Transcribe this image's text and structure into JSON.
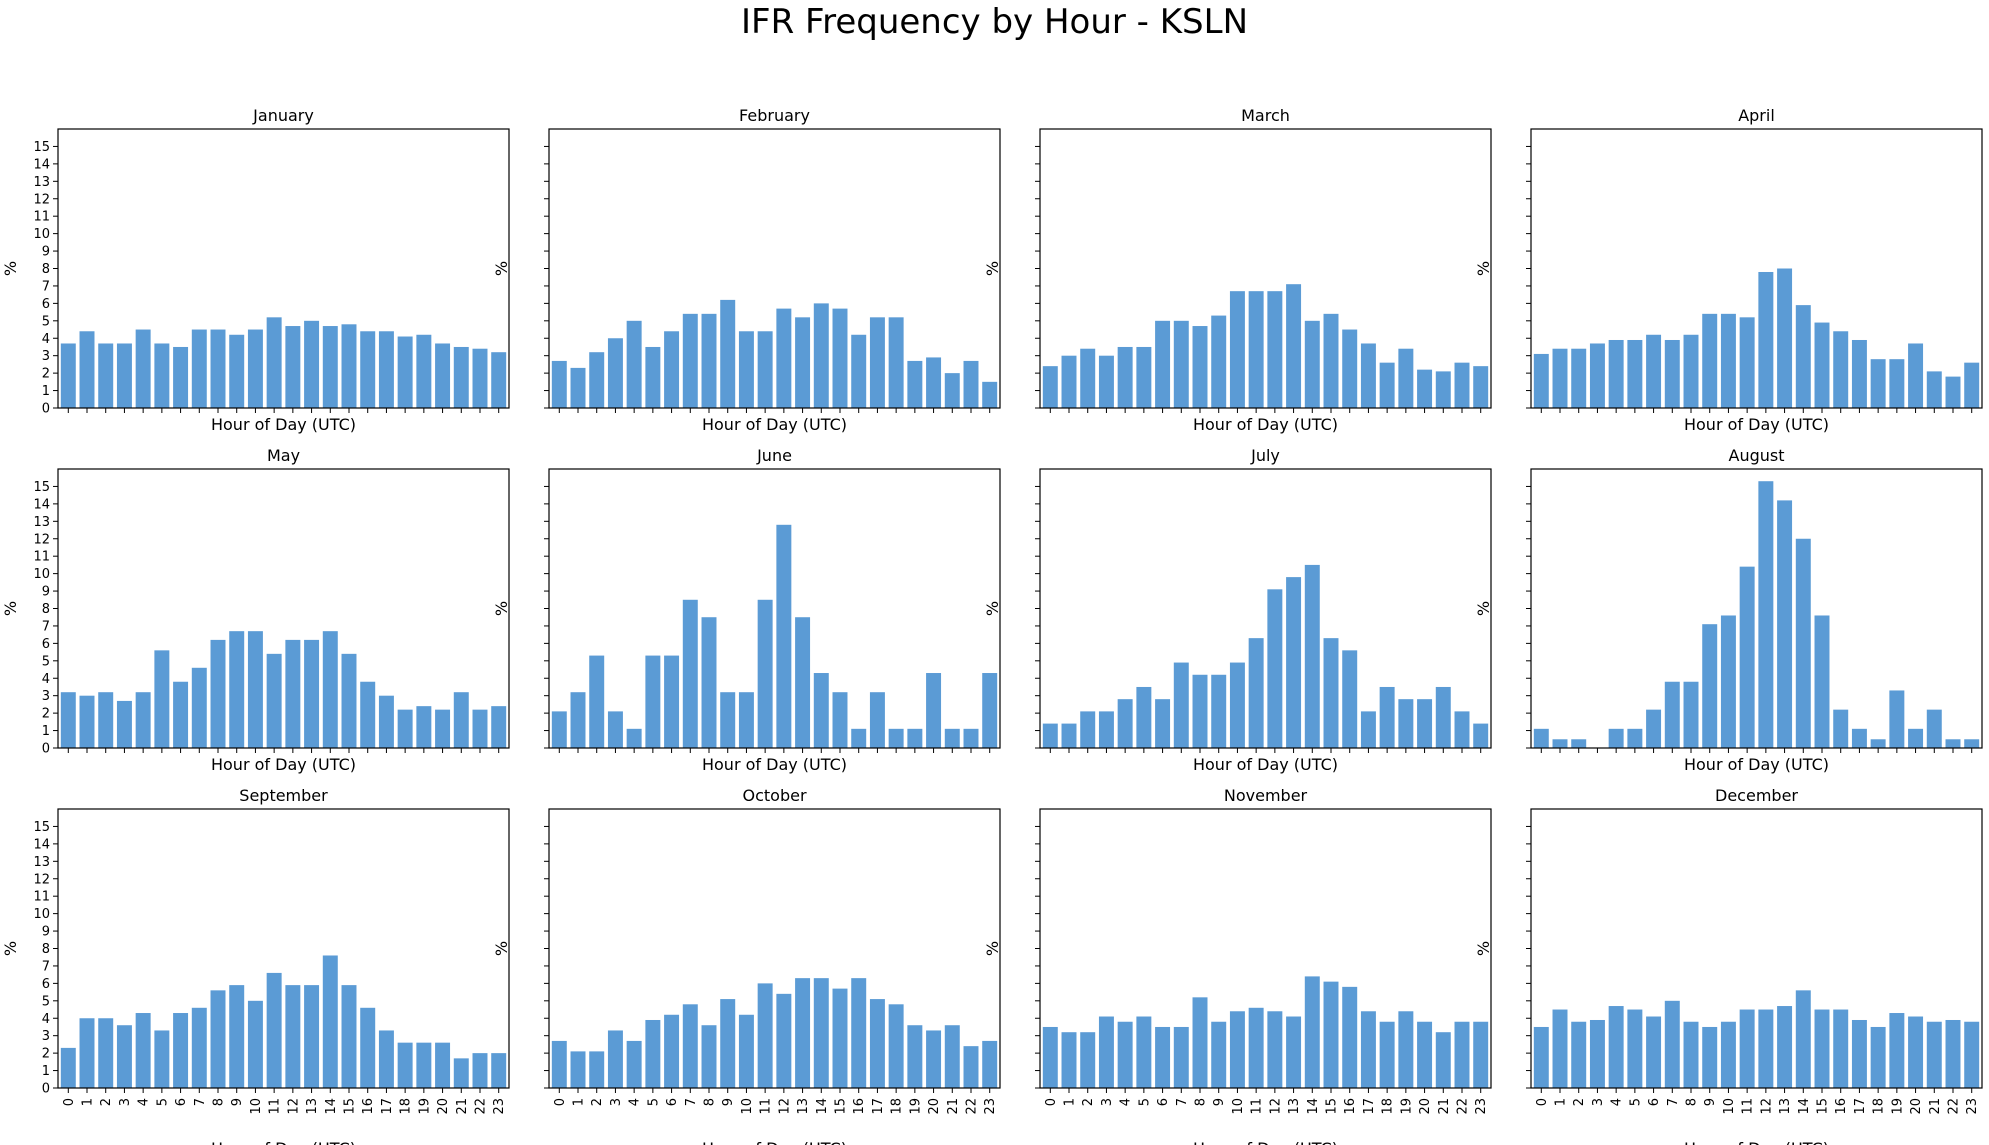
{
  "figure": {
    "title": "IFR Frequency by Hour - KSLN"
  },
  "chart_data": {
    "type": "bar",
    "title": "IFR Frequency by Hour - KSLN",
    "layout": "4x3 small multiples, shared y-axis",
    "xlabel": "Hour of Day (UTC)",
    "ylabel": "%",
    "ylim": [
      0,
      16
    ],
    "yticks": [
      0,
      1,
      2,
      3,
      4,
      5,
      6,
      7,
      8,
      9,
      10,
      11,
      12,
      13,
      14,
      15
    ],
    "bar_color": "#5b9bd5",
    "hours": [
      0,
      1,
      2,
      3,
      4,
      5,
      6,
      7,
      8,
      9,
      10,
      11,
      12,
      13,
      14,
      15,
      16,
      17,
      18,
      19,
      20,
      21,
      22,
      23
    ],
    "panels": [
      {
        "month": "January",
        "values": [
          3.7,
          4.4,
          3.7,
          3.7,
          4.5,
          3.7,
          3.5,
          4.5,
          4.5,
          4.2,
          4.5,
          5.2,
          4.7,
          5.0,
          4.7,
          4.8,
          4.4,
          4.4,
          4.1,
          4.2,
          3.7,
          3.5,
          3.4,
          3.2
        ]
      },
      {
        "month": "February",
        "values": [
          2.7,
          2.3,
          3.2,
          4.0,
          5.0,
          3.5,
          4.4,
          5.4,
          5.4,
          6.2,
          4.4,
          4.4,
          5.7,
          5.2,
          6.0,
          5.7,
          4.2,
          5.2,
          5.2,
          2.7,
          2.9,
          2.0,
          2.7,
          1.5
        ]
      },
      {
        "month": "March",
        "values": [
          2.4,
          3.0,
          3.4,
          3.0,
          3.5,
          3.5,
          5.0,
          5.0,
          4.7,
          5.3,
          6.7,
          6.7,
          6.7,
          7.1,
          5.0,
          5.4,
          4.5,
          3.7,
          2.6,
          3.4,
          2.2,
          2.1,
          2.6,
          2.4
        ]
      },
      {
        "month": "April",
        "values": [
          3.1,
          3.4,
          3.4,
          3.7,
          3.9,
          3.9,
          4.2,
          3.9,
          4.2,
          5.4,
          5.4,
          5.2,
          7.8,
          8.0,
          5.9,
          4.9,
          4.4,
          3.9,
          2.8,
          2.8,
          3.7,
          2.1,
          1.8,
          2.6
        ]
      },
      {
        "month": "May",
        "values": [
          3.2,
          3.0,
          3.2,
          2.7,
          3.2,
          5.6,
          3.8,
          4.6,
          6.2,
          6.7,
          6.7,
          5.4,
          6.2,
          6.2,
          6.7,
          5.4,
          3.8,
          3.0,
          2.2,
          2.4,
          2.2,
          3.2,
          2.2,
          2.4
        ]
      },
      {
        "month": "June",
        "values": [
          2.1,
          3.2,
          5.3,
          2.1,
          1.1,
          5.3,
          5.3,
          8.5,
          7.5,
          3.2,
          3.2,
          8.5,
          12.8,
          7.5,
          4.3,
          3.2,
          1.1,
          3.2,
          1.1,
          1.1,
          4.3,
          1.1,
          1.1,
          4.3
        ]
      },
      {
        "month": "July",
        "values": [
          1.4,
          1.4,
          2.1,
          2.1,
          2.8,
          3.5,
          2.8,
          4.9,
          4.2,
          4.2,
          4.9,
          6.3,
          9.1,
          9.8,
          10.5,
          6.3,
          5.6,
          2.1,
          3.5,
          2.8,
          2.8,
          3.5,
          2.1,
          1.4
        ]
      },
      {
        "month": "August",
        "values": [
          1.1,
          0.5,
          0.5,
          0.0,
          1.1,
          1.1,
          2.2,
          3.8,
          3.8,
          7.1,
          7.6,
          10.4,
          15.3,
          14.2,
          12.0,
          7.6,
          2.2,
          1.1,
          0.5,
          3.3,
          1.1,
          2.2,
          0.5,
          0.5
        ]
      },
      {
        "month": "September",
        "values": [
          2.3,
          4.0,
          4.0,
          3.6,
          4.3,
          3.3,
          4.3,
          4.6,
          5.6,
          5.9,
          5.0,
          6.6,
          5.9,
          5.9,
          7.6,
          5.9,
          4.6,
          3.3,
          2.6,
          2.6,
          2.6,
          1.7,
          2.0,
          2.0
        ]
      },
      {
        "month": "October",
        "values": [
          2.7,
          2.1,
          2.1,
          3.3,
          2.7,
          3.9,
          4.2,
          4.8,
          3.6,
          5.1,
          4.2,
          6.0,
          5.4,
          6.3,
          6.3,
          5.7,
          6.3,
          5.1,
          4.8,
          3.6,
          3.3,
          3.6,
          2.4,
          2.7
        ]
      },
      {
        "month": "November",
        "values": [
          3.5,
          3.2,
          3.2,
          4.1,
          3.8,
          4.1,
          3.5,
          3.5,
          5.2,
          3.8,
          4.4,
          4.6,
          4.4,
          4.1,
          6.4,
          6.1,
          5.8,
          4.4,
          3.8,
          4.4,
          3.8,
          3.2,
          3.8,
          3.8
        ]
      },
      {
        "month": "December",
        "values": [
          3.5,
          4.5,
          3.8,
          3.9,
          4.7,
          4.5,
          4.1,
          5.0,
          3.8,
          3.5,
          3.8,
          4.5,
          4.5,
          4.7,
          5.6,
          4.5,
          4.5,
          3.9,
          3.5,
          4.3,
          4.1,
          3.8,
          3.9,
          3.8
        ]
      }
    ]
  }
}
